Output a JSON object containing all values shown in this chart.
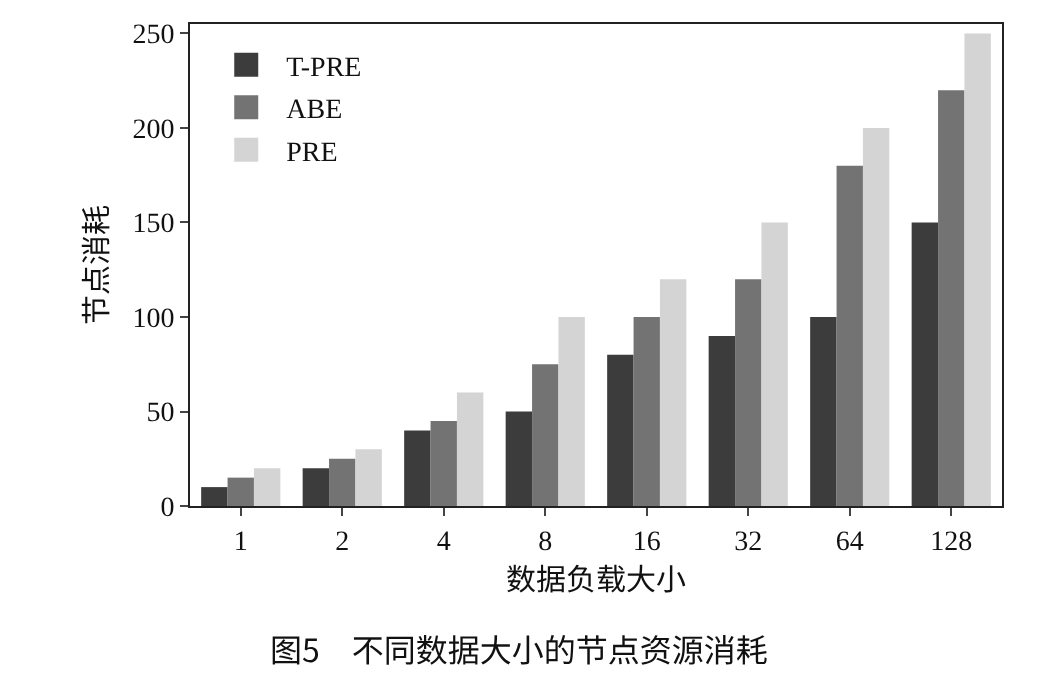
{
  "chart_data": {
    "type": "bar",
    "title": "图5　不同数据大小的节点资源消耗",
    "xlabel": "数据负载大小",
    "ylabel": "节点消耗",
    "categories": [
      "1",
      "2",
      "4",
      "8",
      "16",
      "32",
      "64",
      "128"
    ],
    "series": [
      {
        "name": "T-PRE",
        "color": "#3c3c3c",
        "values": [
          10,
          20,
          40,
          50,
          80,
          90,
          100,
          150
        ]
      },
      {
        "name": "ABE",
        "color": "#737373",
        "values": [
          15,
          25,
          45,
          75,
          100,
          120,
          180,
          220
        ]
      },
      {
        "name": "PRE",
        "color": "#d4d4d4",
        "values": [
          20,
          30,
          60,
          100,
          120,
          150,
          200,
          250
        ]
      }
    ],
    "ylim": [
      0,
      255
    ],
    "yticks": [
      0,
      50,
      100,
      150,
      200,
      250
    ],
    "grid": false,
    "legend": "top left"
  }
}
